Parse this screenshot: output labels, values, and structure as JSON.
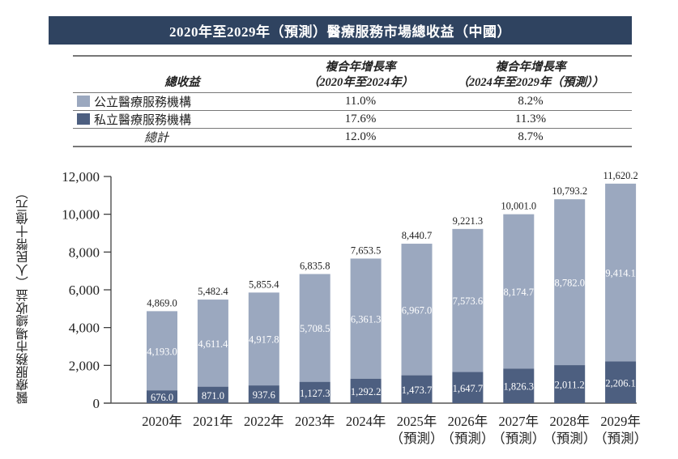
{
  "title": "2020年至2029年（預測）醫療服務市場總收益（中國）",
  "colors": {
    "title_bg": "#2f4360",
    "public": "#9ba8bf",
    "private": "#4d5f80"
  },
  "cagr_table": {
    "headers": {
      "label": "總收益",
      "col1_line1": "複合年增長率",
      "col1_line2": "（2020年至2024年）",
      "col2_line1": "複合年增長率",
      "col2_line2": "（2024年至2029年（預測））"
    },
    "rows": [
      {
        "label": "公立醫療服務機構",
        "cagr_2020_2024": "11.0%",
        "cagr_2024_2029": "8.2%"
      },
      {
        "label": "私立醫療服務機構",
        "cagr_2020_2024": "17.6%",
        "cagr_2024_2029": "11.3%"
      },
      {
        "label": "總計",
        "cagr_2020_2024": "12.0%",
        "cagr_2024_2029": "8.7%"
      }
    ]
  },
  "chart_data": {
    "type": "bar",
    "stacked": true,
    "title": "2020年至2029年（預測）醫療服務市場總收益（中國）",
    "xlabel": "",
    "ylabel": "醫療服務市場總收益（人民幣十億元）",
    "ylim": [
      0,
      12000
    ],
    "yticks": [
      0,
      2000,
      4000,
      6000,
      8000,
      10000,
      12000
    ],
    "ytick_labels": [
      "0",
      "2,000",
      "4,000",
      "6,000",
      "8,000",
      "10,000",
      "12,000"
    ],
    "grid": false,
    "categories": [
      "2020年",
      "2021年",
      "2022年",
      "2023年",
      "2024年",
      "2025年",
      "2026年",
      "2027年",
      "2028年",
      "2029年"
    ],
    "category_sublabels": [
      "",
      "",
      "",
      "",
      "",
      "（預測）",
      "（預測）",
      "（預測）",
      "（預測）",
      "（預測）"
    ],
    "series": [
      {
        "name": "私立醫療服務機構",
        "values": [
          676.0,
          871.0,
          937.6,
          1127.3,
          1292.2,
          1473.7,
          1647.7,
          1826.3,
          2011.2,
          2206.1
        ]
      },
      {
        "name": "公立醫療服務機構",
        "values": [
          4193.0,
          4611.4,
          4917.8,
          5708.5,
          6361.3,
          6967.0,
          7573.6,
          8174.7,
          8782.0,
          9414.1
        ]
      }
    ],
    "totals": [
      4869.0,
      5482.4,
      5855.4,
      6835.8,
      7653.5,
      8440.7,
      9221.3,
      10001.0,
      10793.2,
      11620.2
    ]
  }
}
